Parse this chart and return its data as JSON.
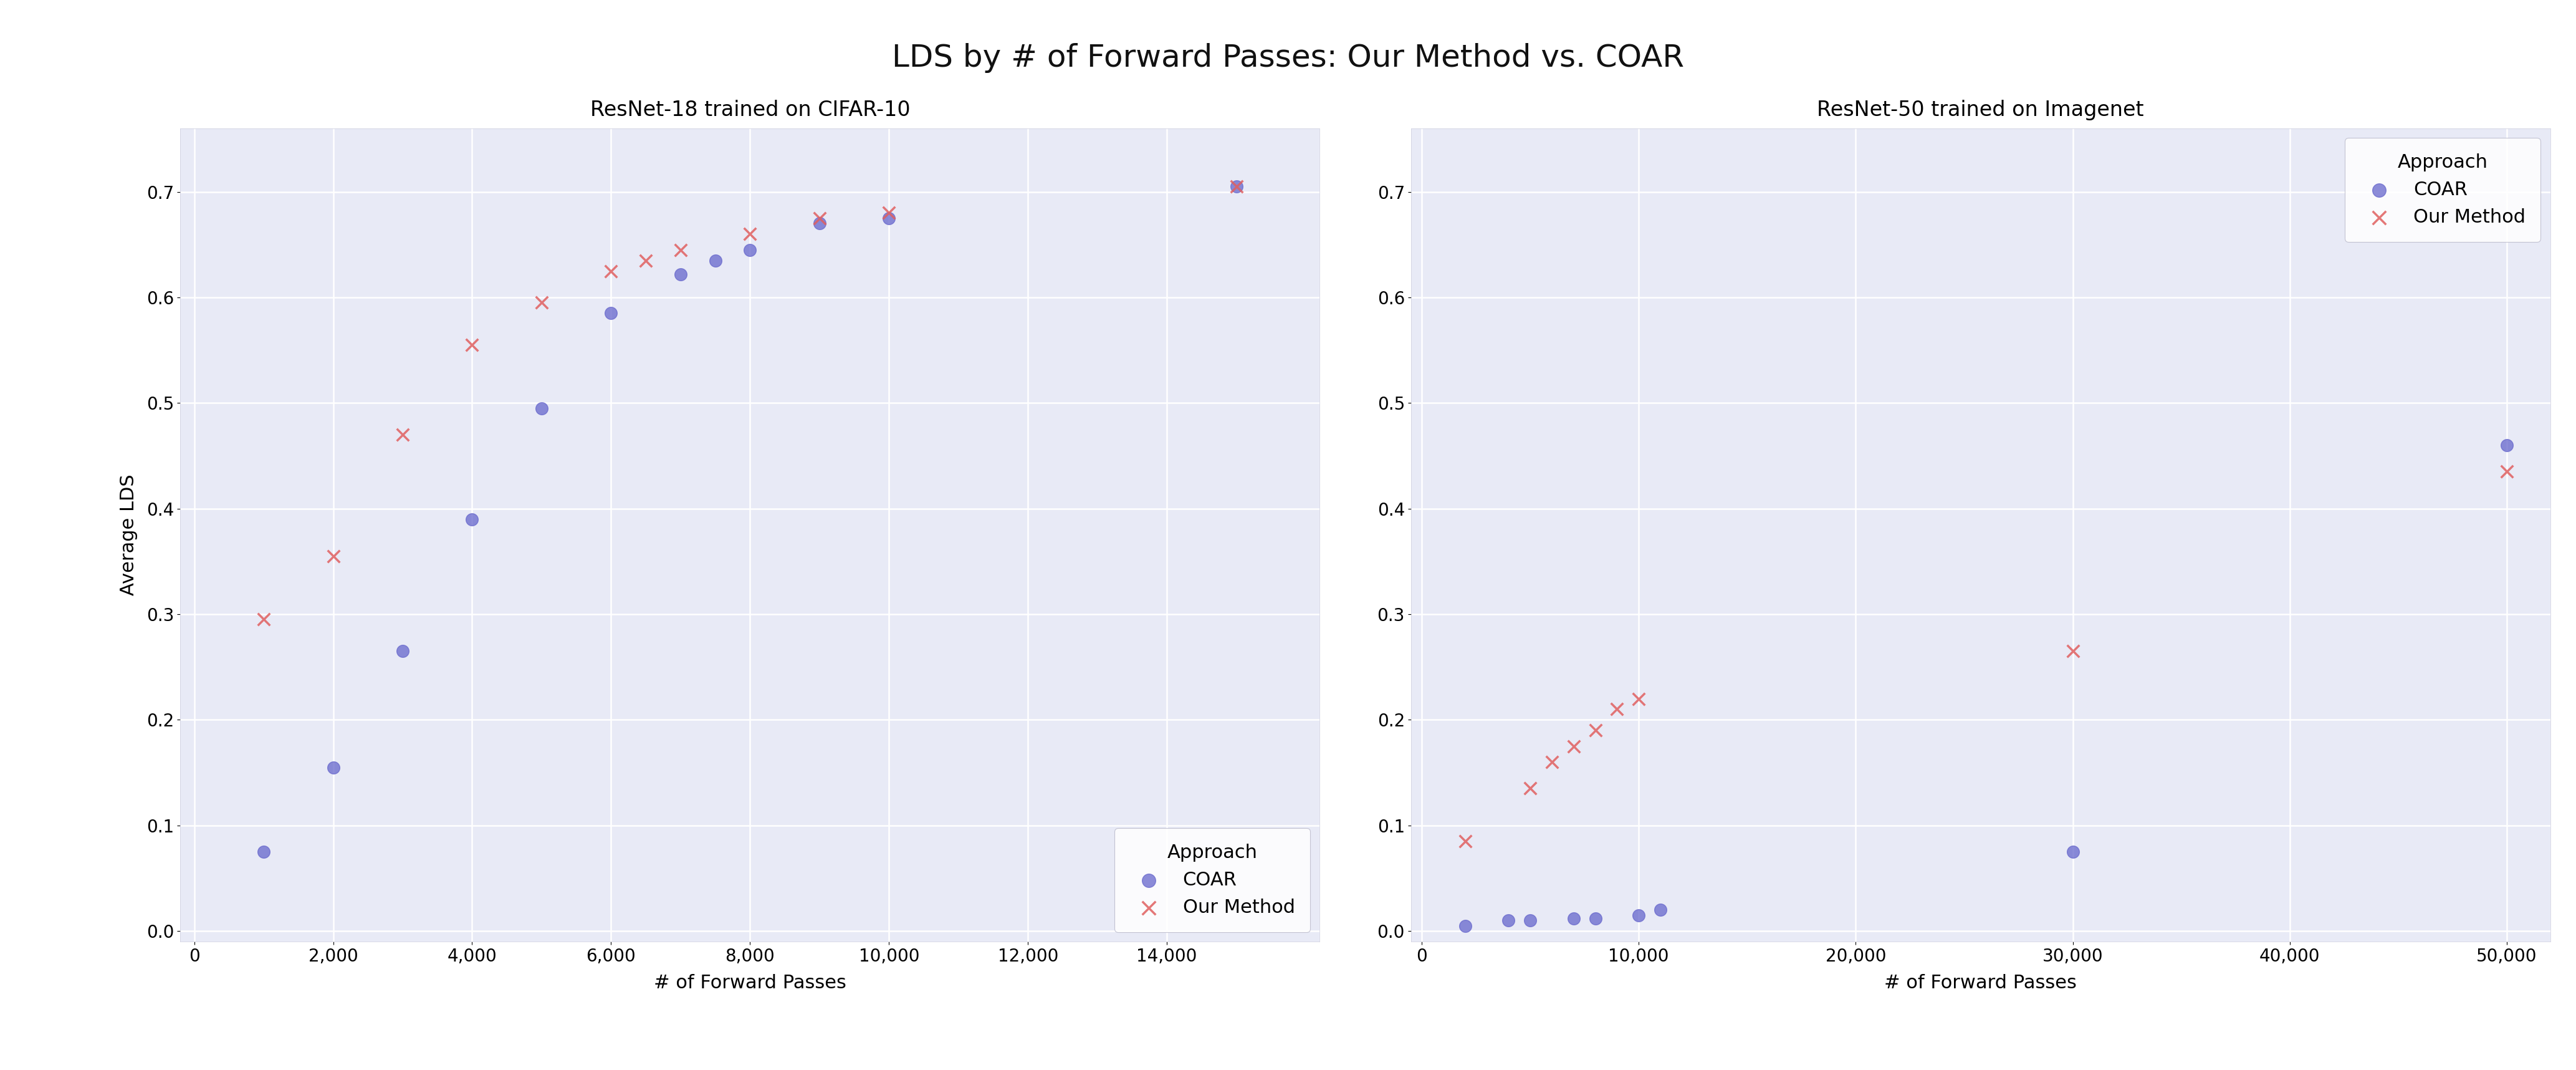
{
  "title": "LDS by # of Forward Passes: Our Method vs. COAR",
  "xlabel": "# of Forward Passes",
  "ylabel": "Average LDS",
  "background_color": "#ffffff",
  "plot_bg_color": "#e8eaf6",
  "title_fontsize": 36,
  "label_fontsize": 22,
  "tick_fontsize": 20,
  "legend_fontsize": 22,
  "legend_title_fontsize": 22,
  "subplot_title_fontsize": 24,
  "coar_color": "#6666cc",
  "our_color": "#e06060",
  "left": {
    "title": "ResNet-18 trained on CIFAR-10",
    "coar_x": [
      1000,
      2000,
      3000,
      4000,
      5000,
      6000,
      7000,
      7500,
      8000,
      9000,
      10000,
      15000
    ],
    "coar_y": [
      0.075,
      0.155,
      0.265,
      0.39,
      0.495,
      0.585,
      0.622,
      0.635,
      0.645,
      0.67,
      0.675,
      0.705
    ],
    "our_x": [
      1000,
      2000,
      3000,
      4000,
      5000,
      6000,
      6500,
      7000,
      8000,
      9000,
      10000,
      15000
    ],
    "our_y": [
      0.295,
      0.355,
      0.47,
      0.555,
      0.595,
      0.625,
      0.635,
      0.645,
      0.66,
      0.675,
      0.68,
      0.705
    ],
    "xlim": [
      -200,
      16200
    ],
    "ylim": [
      -0.01,
      0.76
    ],
    "xticks": [
      0,
      2000,
      4000,
      6000,
      8000,
      10000,
      12000,
      14000
    ],
    "yticks": [
      0.0,
      0.1,
      0.2,
      0.3,
      0.4,
      0.5,
      0.6,
      0.7
    ],
    "legend_loc": "lower right"
  },
  "right": {
    "title": "ResNet-50 trained on Imagenet",
    "coar_x": [
      2000,
      4000,
      5000,
      7000,
      8000,
      10000,
      11000,
      30000,
      50000
    ],
    "coar_y": [
      0.005,
      0.01,
      0.01,
      0.012,
      0.012,
      0.015,
      0.02,
      0.075,
      0.46
    ],
    "our_x": [
      2000,
      5000,
      6000,
      7000,
      8000,
      9000,
      10000,
      30000,
      50000
    ],
    "our_y": [
      0.085,
      0.135,
      0.16,
      0.175,
      0.19,
      0.21,
      0.22,
      0.265,
      0.435
    ],
    "xlim": [
      -500,
      52000
    ],
    "ylim": [
      -0.01,
      0.76
    ],
    "xticks": [
      0,
      10000,
      20000,
      30000,
      40000,
      50000
    ],
    "yticks": [
      0.0,
      0.1,
      0.2,
      0.3,
      0.4,
      0.5,
      0.6,
      0.7
    ],
    "legend_loc": "upper right"
  }
}
